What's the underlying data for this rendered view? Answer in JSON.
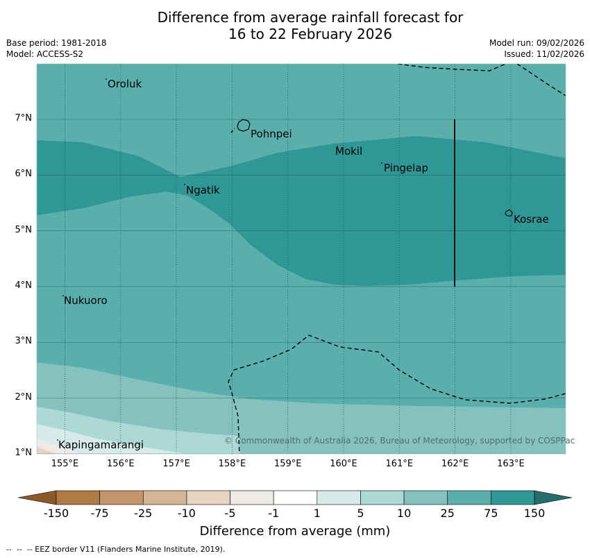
{
  "header": {
    "title_line1": "Difference from average rainfall forecast for",
    "title_line2": "16 to 22 February 2026",
    "base_period": "Base period: 1981-2018",
    "model": "Model: ACCESS-S2",
    "model_run": "Model run: 09/02/2026",
    "issued": "Issued: 11/02/2026"
  },
  "map": {
    "lat_ticks": [
      "7°N",
      "6°N",
      "5°N",
      "4°N",
      "3°N",
      "2°N",
      "1°N"
    ],
    "lon_ticks": [
      "155°E",
      "156°E",
      "157°E",
      "158°E",
      "159°E",
      "160°E",
      "161°E",
      "162°E",
      "163°E"
    ],
    "places": {
      "oroluk": "Oroluk",
      "pohnpei": "Pohnpei",
      "mokil": "Mokil",
      "pingelap": "Pingelap",
      "ngatik": "Ngatik",
      "kosrae": "Kosrae",
      "nukuoro": "Nukuoro",
      "kapingamarangi": "Kapingamarangi"
    },
    "copyright": "© Commonwealth of Australia 2026, Bureau of Meteorology, supported by COSPPac"
  },
  "colorbar": {
    "labels": [
      "-150",
      "-75",
      "-25",
      "-10",
      "-5",
      "-1",
      "1",
      "5",
      "10",
      "25",
      "75",
      "150"
    ],
    "colors": [
      "#8c5a28",
      "#b07a44",
      "#c4956b",
      "#d6b596",
      "#e6d3c1",
      "#eeeae6",
      "#ffffff",
      "#d5eae9",
      "#acd8d6",
      "#84c1bf",
      "#5aaeac",
      "#2f9896",
      "#246f6d"
    ],
    "axis_label": "Difference from average (mm)"
  },
  "footer": {
    "legend_text": "--  --  -- EEZ border V11 (Flanders Marine Institute, 2019)."
  }
}
